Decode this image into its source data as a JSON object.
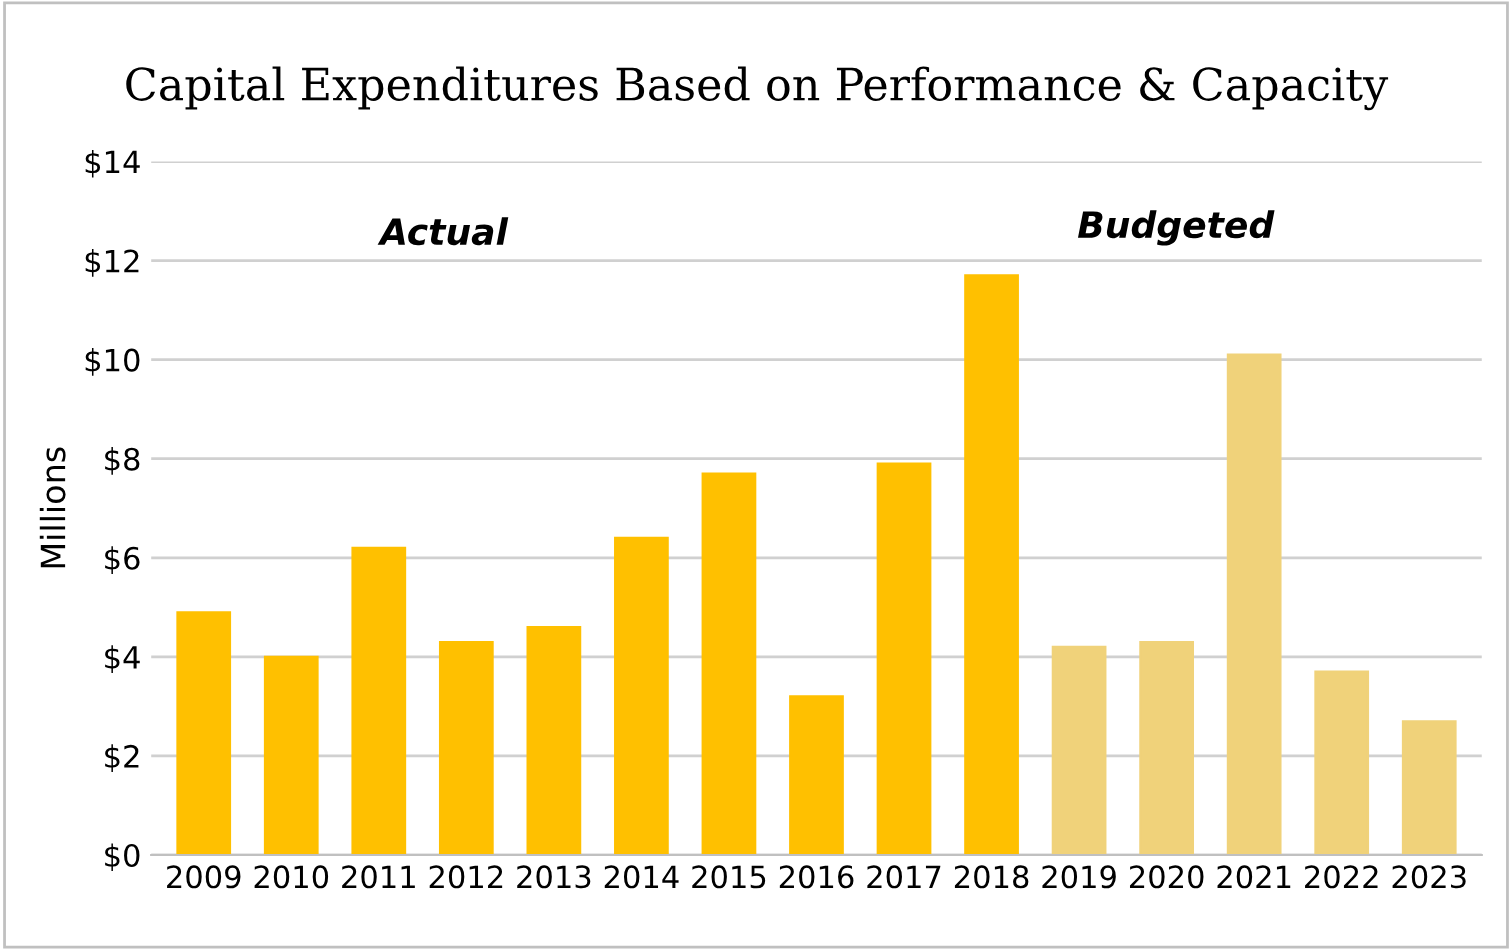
{
  "chart_data": {
    "type": "bar",
    "title": "Capital Expenditures Based on Performance & Capacity",
    "ylabel": "Millions",
    "categories": [
      "2009",
      "2010",
      "2011",
      "2012",
      "2013",
      "2014",
      "2015",
      "2016",
      "2017",
      "2018",
      "2019",
      "2020",
      "2021",
      "2022",
      "2023"
    ],
    "series": [
      {
        "color": "#ffc000",
        "values": [
          4.9,
          4.0,
          6.2,
          4.3,
          4.6,
          6.4,
          7.7,
          3.2,
          7.9,
          11.7,
          null,
          null,
          null,
          null,
          null
        ]
      },
      {
        "color": "#f0d27a",
        "values": [
          null,
          null,
          null,
          null,
          null,
          null,
          null,
          null,
          null,
          null,
          4.2,
          4.3,
          10.1,
          3.7,
          2.7
        ]
      }
    ],
    "annotations": [
      "Actual",
      "Budgeted"
    ],
    "ylim": [
      0,
      14
    ],
    "yticks": [
      {
        "value": 0,
        "label": "$0"
      },
      {
        "value": 2,
        "label": "$2"
      },
      {
        "value": 4,
        "label": "$4"
      },
      {
        "value": 6,
        "label": "$6"
      },
      {
        "value": 8,
        "label": "$8"
      },
      {
        "value": 10,
        "label": "$10"
      },
      {
        "value": 12,
        "label": "$12"
      },
      {
        "value": 14,
        "label": "$14"
      }
    ],
    "grid": "y",
    "legend": false
  }
}
